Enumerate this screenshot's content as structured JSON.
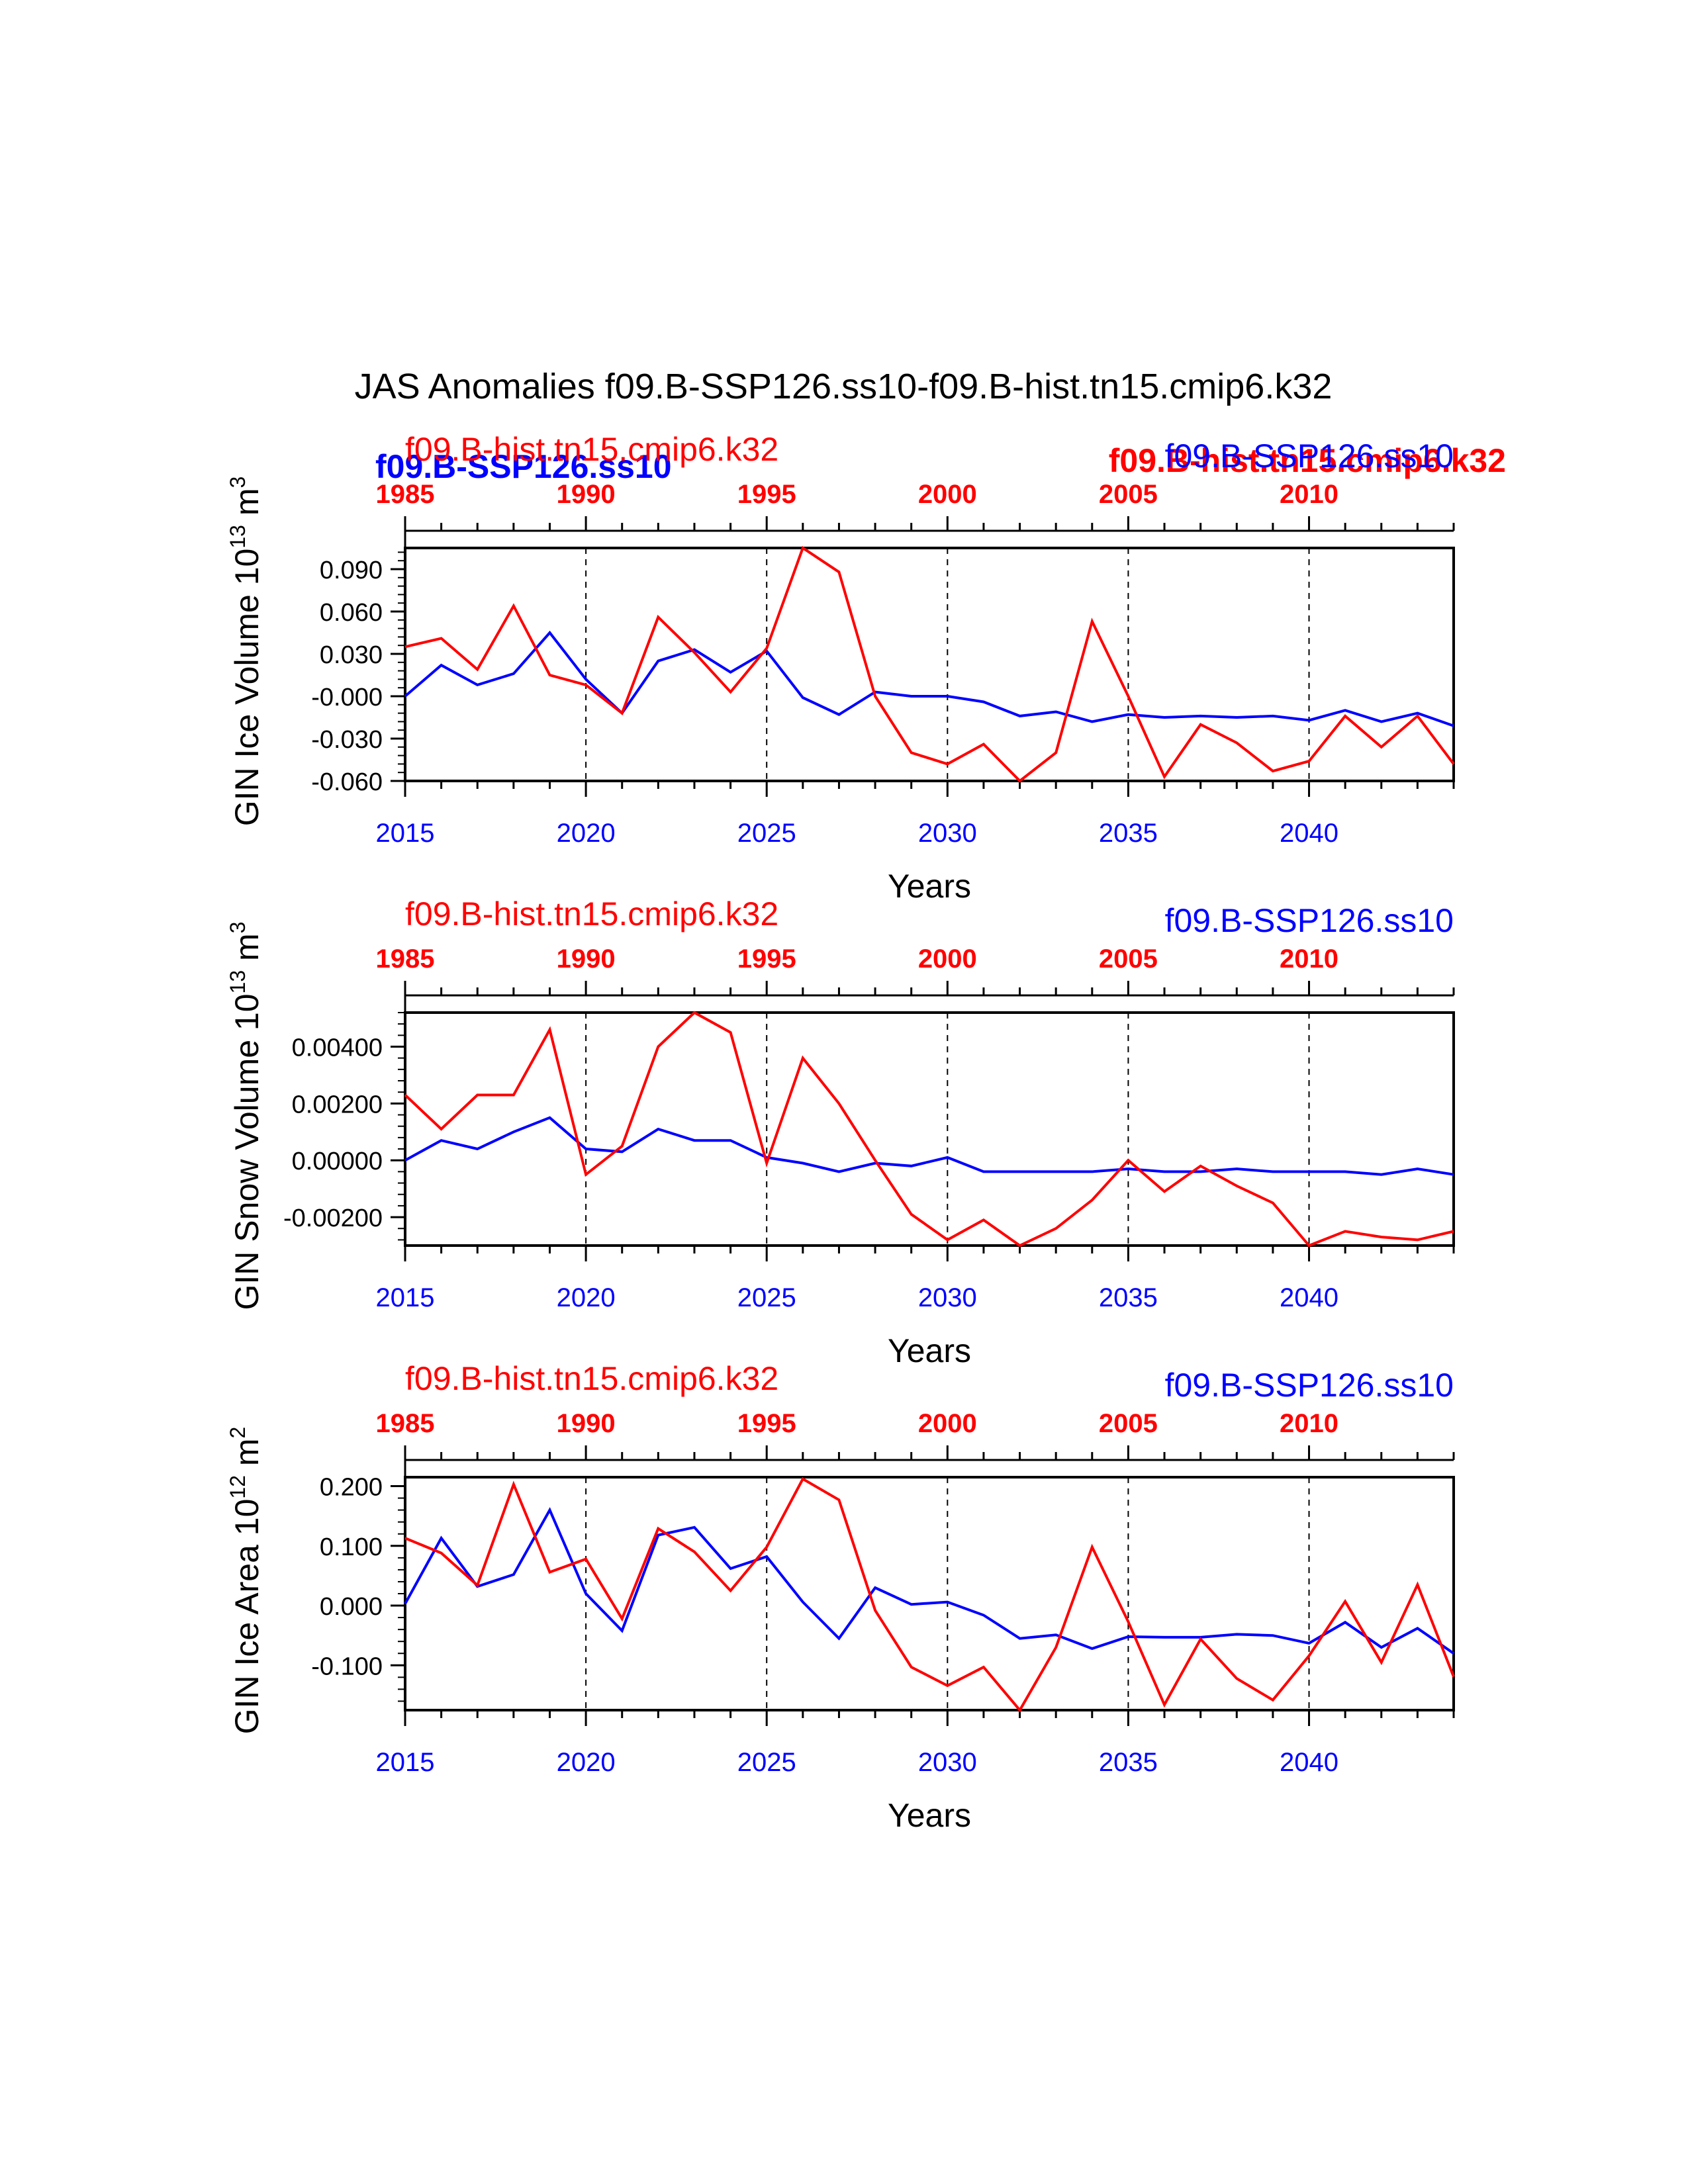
{
  "title": "JAS Anomalies f09.B-SSP126.ss10-f09.B-hist.tn15.cmip6.k32",
  "colors": {
    "ssp": "#0000ff",
    "hist": "#ff0000",
    "axis": "#000000"
  },
  "legend": {
    "top_bold_ssp": "f09.B-SSP126.ss10",
    "top_bold_hist": "f09.B-hist.tn15.cmip6.k32"
  },
  "chart_data": [
    {
      "type": "line",
      "panel": "ice-volume",
      "ylabel_main": "GIN Ice Volume 10",
      "ylabel_exp": "13",
      "ylabel_tail": " m",
      "ylabel_unit_exp": "3",
      "xlabel": "Years",
      "hist_label": "f09.B-hist.tn15.cmip6.k32",
      "ssp_label": "f09.B-SSP126.ss10",
      "xlim": [
        2015,
        2044
      ],
      "ylim": [
        -0.06,
        0.105
      ],
      "yticks": [
        0.09,
        0.06,
        0.03,
        0.0,
        -0.03,
        -0.06
      ],
      "ytick_labels": [
        "0.090",
        "0.060",
        "0.030",
        "-0.000",
        "-0.030",
        "-0.060"
      ],
      "xticks_bottom": [
        "2015",
        "2020",
        "2025",
        "2030",
        "2035",
        "2040"
      ],
      "xticks_top": [
        "1985",
        "1990",
        "1995",
        "2000",
        "2005",
        "2010"
      ],
      "x": [
        2015,
        2016,
        2017,
        2018,
        2019,
        2020,
        2021,
        2022,
        2023,
        2024,
        2025,
        2026,
        2027,
        2028,
        2029,
        2030,
        2031,
        2032,
        2033,
        2034,
        2035,
        2036,
        2037,
        2038,
        2039,
        2040,
        2041,
        2042,
        2043,
        2044
      ],
      "series": [
        {
          "name": "f09.B-SSP126.ss10",
          "values": [
            0.0,
            0.022,
            0.008,
            0.016,
            0.045,
            0.012,
            -0.012,
            0.025,
            0.033,
            0.017,
            0.032,
            -0.001,
            -0.013,
            0.003,
            0.0,
            0.0,
            -0.004,
            -0.014,
            -0.011,
            -0.018,
            -0.013,
            -0.015,
            -0.014,
            -0.015,
            -0.014,
            -0.017,
            -0.01,
            -0.018,
            -0.012,
            -0.021
          ]
        },
        {
          "name": "f09.B-hist.tn15.cmip6.k32",
          "values": [
            0.035,
            0.041,
            0.019,
            0.064,
            0.015,
            0.008,
            -0.012,
            0.056,
            0.031,
            0.003,
            0.034,
            0.105,
            0.088,
            0.0,
            -0.04,
            -0.048,
            -0.034,
            -0.06,
            -0.04,
            0.053,
            0.0,
            -0.057,
            -0.02,
            -0.033,
            -0.053,
            -0.046,
            -0.014,
            -0.036,
            -0.014,
            -0.048
          ]
        }
      ]
    },
    {
      "type": "line",
      "panel": "snow-volume",
      "ylabel_main": "GIN Snow Volume 10",
      "ylabel_exp": "13",
      "ylabel_tail": " m",
      "ylabel_unit_exp": "3",
      "xlabel": "Years",
      "hist_label": "f09.B-hist.tn15.cmip6.k32",
      "ssp_label": "f09.B-SSP126.ss10",
      "xlim": [
        2015,
        2044
      ],
      "ylim": [
        -0.003,
        0.0052
      ],
      "yticks": [
        0.004,
        0.002,
        0.0,
        -0.002
      ],
      "ytick_labels": [
        "0.00400",
        "0.00200",
        "0.00000",
        "-0.00200"
      ],
      "xticks_bottom": [
        "2015",
        "2020",
        "2025",
        "2030",
        "2035",
        "2040"
      ],
      "xticks_top": [
        "1985",
        "1990",
        "1995",
        "2000",
        "2005",
        "2010"
      ],
      "x": [
        2015,
        2016,
        2017,
        2018,
        2019,
        2020,
        2021,
        2022,
        2023,
        2024,
        2025,
        2026,
        2027,
        2028,
        2029,
        2030,
        2031,
        2032,
        2033,
        2034,
        2035,
        2036,
        2037,
        2038,
        2039,
        2040,
        2041,
        2042,
        2043,
        2044
      ],
      "series": [
        {
          "name": "f09.B-SSP126.ss10",
          "values": [
            0.0,
            0.0007,
            0.0004,
            0.001,
            0.0015,
            0.0004,
            0.0003,
            0.0011,
            0.0007,
            0.0007,
            0.0001,
            -0.0001,
            -0.0004,
            -0.0001,
            -0.0002,
            0.0001,
            -0.0004,
            -0.0004,
            -0.0004,
            -0.0004,
            -0.0003,
            -0.0004,
            -0.0004,
            -0.0003,
            -0.0004,
            -0.0004,
            -0.0004,
            -0.0005,
            -0.0003,
            -0.0005
          ]
        },
        {
          "name": "f09.B-hist.tn15.cmip6.k32",
          "values": [
            0.0023,
            0.0011,
            0.0023,
            0.0023,
            0.0046,
            -0.0005,
            0.0005,
            0.004,
            0.0052,
            0.0045,
            -0.0001,
            0.0036,
            0.002,
            0.0,
            -0.0019,
            -0.0028,
            -0.0021,
            -0.003,
            -0.0024,
            -0.0014,
            0.0,
            -0.0011,
            -0.0002,
            -0.0009,
            -0.0015,
            -0.003,
            -0.0025,
            -0.0027,
            -0.0028,
            -0.0025
          ]
        }
      ]
    },
    {
      "type": "line",
      "panel": "ice-area",
      "ylabel_main": "GIN Ice Area 10",
      "ylabel_exp": "12",
      "ylabel_tail": " m",
      "ylabel_unit_exp": "2",
      "xlabel": "Years",
      "hist_label": "f09.B-hist.tn15.cmip6.k32",
      "ssp_label": "f09.B-SSP126.ss10",
      "xlim": [
        2015,
        2044
      ],
      "ylim": [
        -0.175,
        0.215
      ],
      "yticks": [
        0.2,
        0.1,
        0.0,
        -0.1
      ],
      "ytick_labels": [
        "0.200",
        "0.100",
        "0.000",
        "-0.100"
      ],
      "xticks_bottom": [
        "2015",
        "2020",
        "2025",
        "2030",
        "2035",
        "2040"
      ],
      "xticks_top": [
        "1985",
        "1990",
        "1995",
        "2000",
        "2005",
        "2010"
      ],
      "x": [
        2015,
        2016,
        2017,
        2018,
        2019,
        2020,
        2021,
        2022,
        2023,
        2024,
        2025,
        2026,
        2027,
        2028,
        2029,
        2030,
        2031,
        2032,
        2033,
        2034,
        2035,
        2036,
        2037,
        2038,
        2039,
        2040,
        2041,
        2042,
        2043,
        2044
      ],
      "series": [
        {
          "name": "f09.B-SSP126.ss10",
          "values": [
            0.003,
            0.113,
            0.032,
            0.052,
            0.16,
            0.02,
            -0.042,
            0.118,
            0.131,
            0.062,
            0.082,
            0.006,
            -0.055,
            0.03,
            0.002,
            0.006,
            -0.016,
            -0.055,
            -0.049,
            -0.072,
            -0.052,
            -0.053,
            -0.053,
            -0.048,
            -0.05,
            -0.063,
            -0.028,
            -0.07,
            -0.038,
            -0.08
          ]
        },
        {
          "name": "f09.B-hist.tn15.cmip6.k32",
          "values": [
            0.113,
            0.088,
            0.034,
            0.203,
            0.056,
            0.078,
            -0.022,
            0.129,
            0.09,
            0.025,
            0.098,
            0.212,
            0.177,
            -0.008,
            -0.103,
            -0.134,
            -0.103,
            -0.175,
            -0.07,
            0.098,
            -0.027,
            -0.166,
            -0.056,
            -0.122,
            -0.158,
            -0.084,
            0.007,
            -0.095,
            0.035,
            -0.119
          ]
        }
      ]
    }
  ]
}
